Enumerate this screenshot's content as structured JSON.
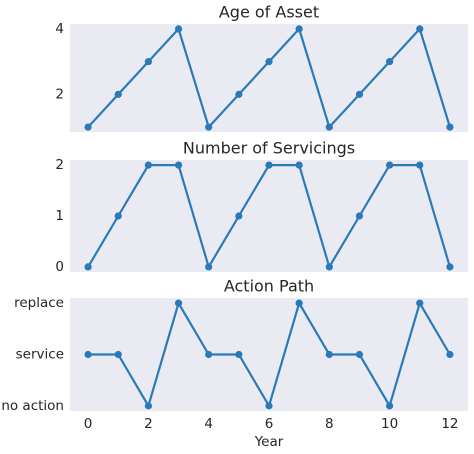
{
  "chart_data": [
    {
      "type": "line",
      "title": "Age of Asset",
      "x": [
        0,
        1,
        2,
        3,
        4,
        5,
        6,
        7,
        8,
        9,
        10,
        11,
        12
      ],
      "series": [
        {
          "color": "#2a7ab9",
          "values": [
            1,
            2,
            3,
            4,
            1,
            2,
            3,
            4,
            1,
            2,
            3,
            4,
            1
          ]
        }
      ],
      "xlim": [
        -0.6,
        12.6
      ],
      "ylim": [
        0.85,
        4.15
      ],
      "yticks": [
        2,
        4
      ],
      "grid": false
    },
    {
      "type": "line",
      "title": "Number of Servicings",
      "x": [
        0,
        1,
        2,
        3,
        4,
        5,
        6,
        7,
        8,
        9,
        10,
        11,
        12
      ],
      "series": [
        {
          "color": "#2a7ab9",
          "values": [
            0,
            1,
            2,
            2,
            0,
            1,
            2,
            2,
            0,
            1,
            2,
            2,
            0
          ]
        }
      ],
      "xlim": [
        -0.6,
        12.6
      ],
      "ylim": [
        -0.1,
        2.1
      ],
      "yticks": [
        0,
        1,
        2
      ],
      "grid": false
    },
    {
      "type": "line",
      "title": "Action Path",
      "xlabel": "Year",
      "x": [
        0,
        1,
        2,
        3,
        4,
        5,
        6,
        7,
        8,
        9,
        10,
        11,
        12
      ],
      "series": [
        {
          "color": "#2a7ab9",
          "values": [
            1,
            1,
            0,
            2,
            1,
            1,
            0,
            2,
            1,
            1,
            0,
            2,
            1
          ]
        }
      ],
      "xlim": [
        -0.6,
        12.6
      ],
      "ylim": [
        -0.1,
        2.1
      ],
      "yticks": [
        {
          "value": 0,
          "label": "no action"
        },
        {
          "value": 1,
          "label": "service"
        },
        {
          "value": 2,
          "label": "replace"
        }
      ],
      "xticks": [
        0,
        2,
        4,
        6,
        8,
        10,
        12
      ],
      "grid": false
    }
  ]
}
